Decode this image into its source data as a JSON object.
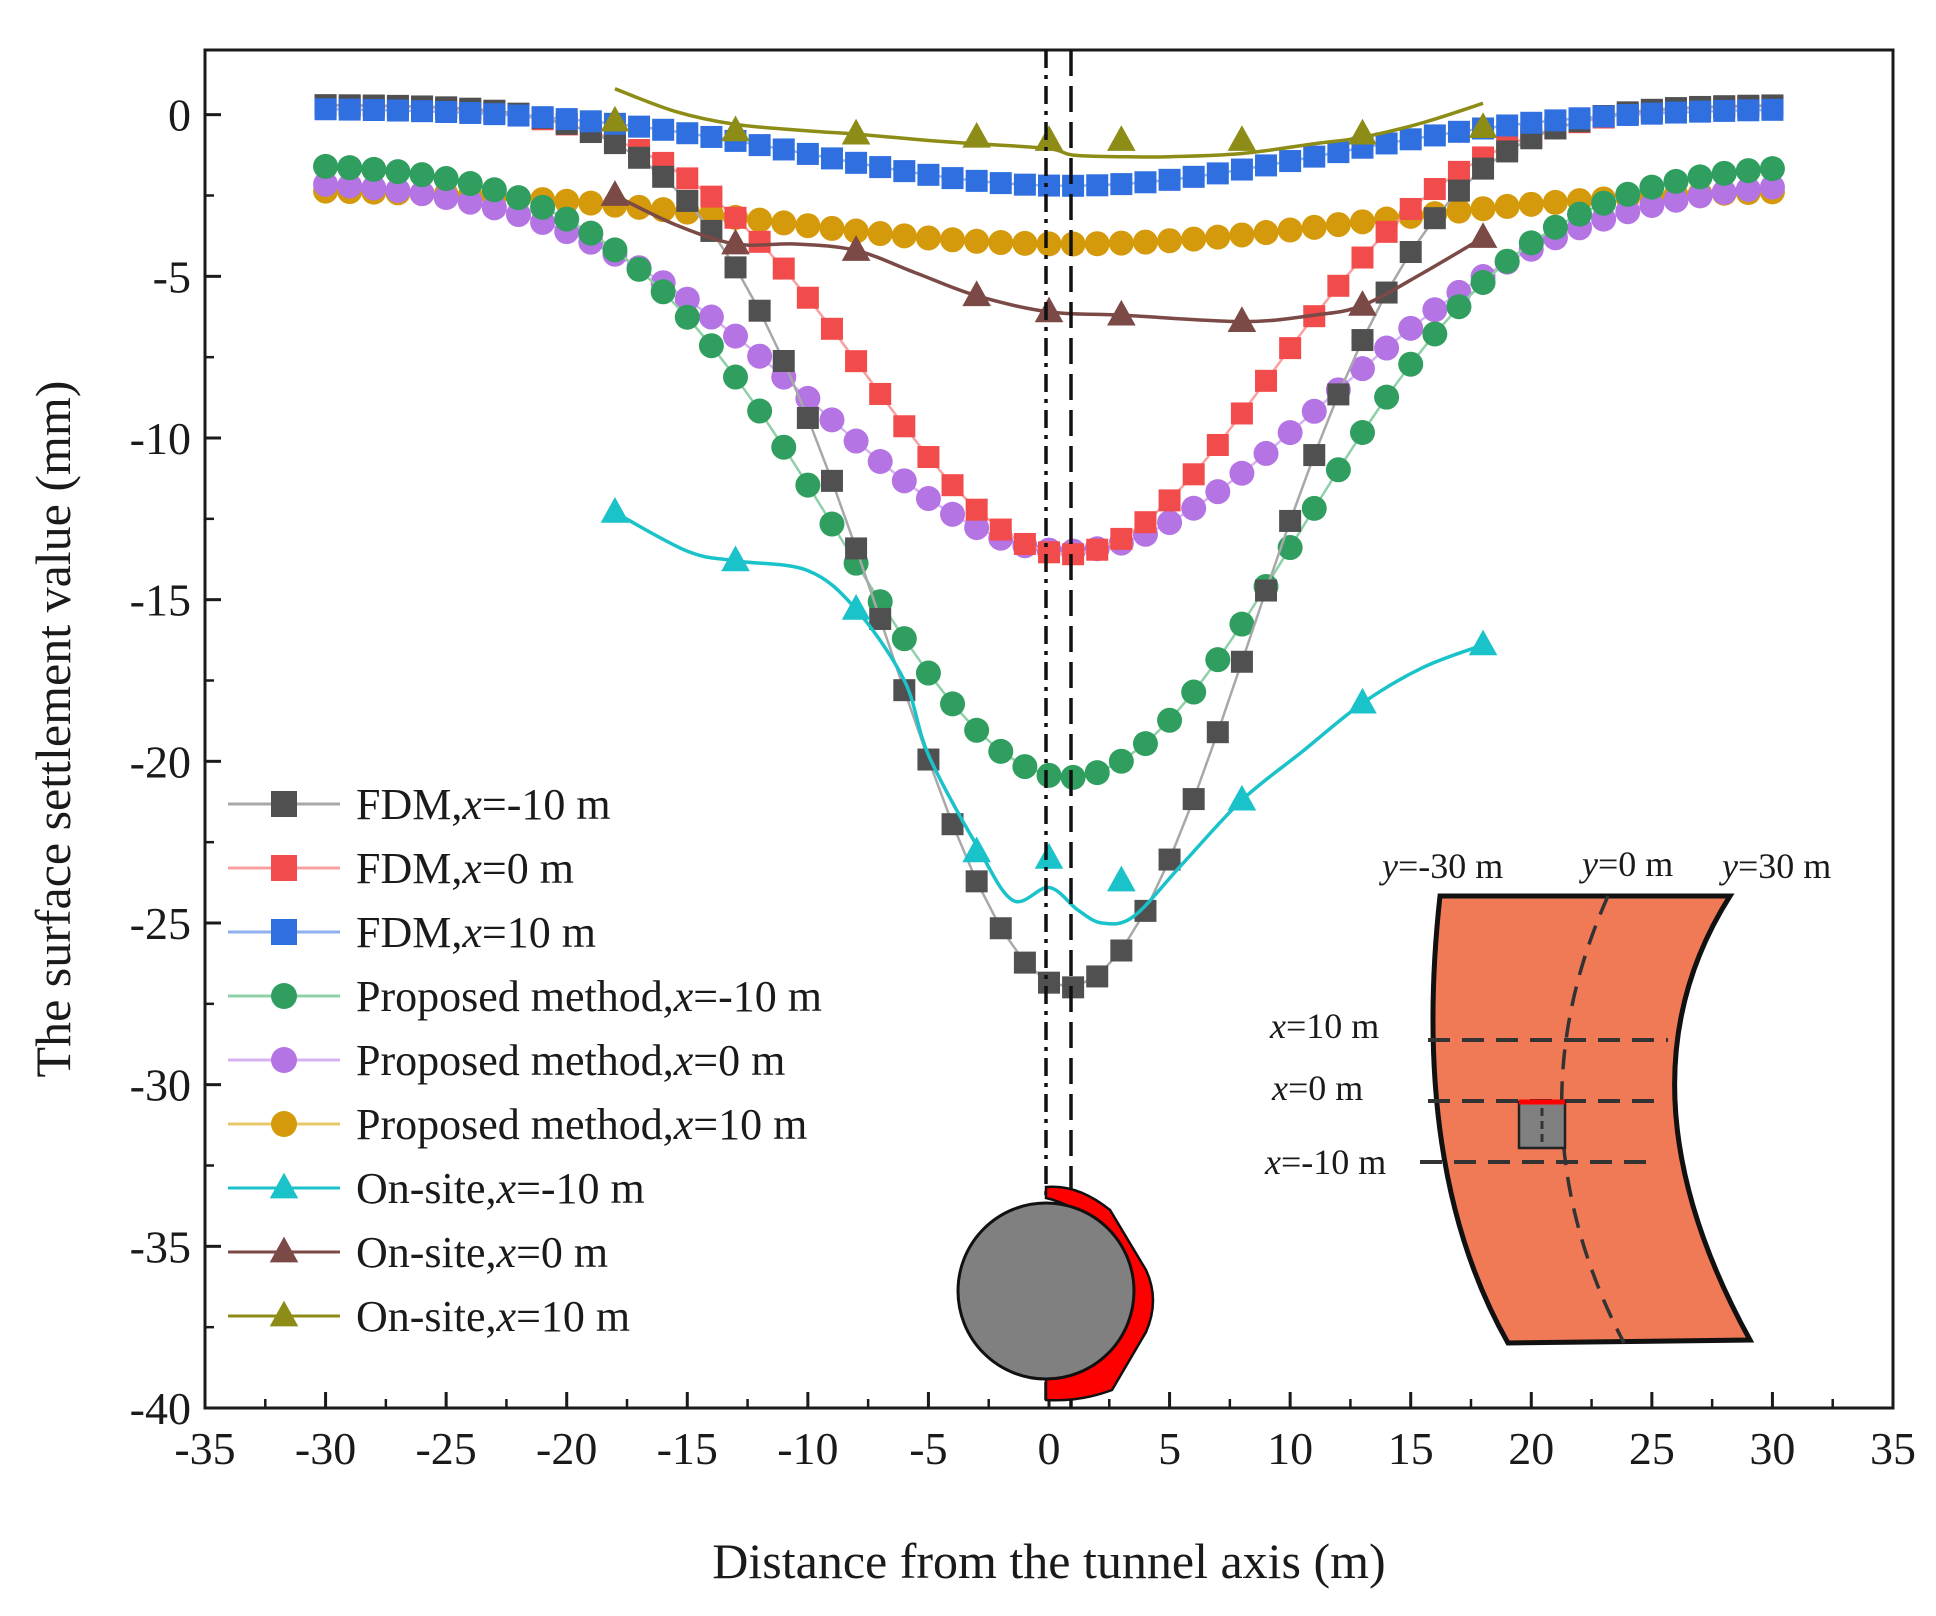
{
  "chart_data": {
    "type": "scatter",
    "title": "",
    "xlabel": "Distance from the tunnel axis (m)",
    "ylabel": "The surface settlement value (mm)",
    "xlim": [
      -35,
      35
    ],
    "ylim": [
      -40,
      2
    ],
    "xticks": [
      -35,
      -30,
      -25,
      -20,
      -15,
      -10,
      -5,
      0,
      5,
      10,
      15,
      20,
      25,
      30,
      35
    ],
    "yticks": [
      0,
      -5,
      -10,
      -15,
      -20,
      -25,
      -30,
      -35,
      -40
    ],
    "grid": false,
    "legend_position": "lower-left",
    "series": [
      {
        "name": "FDM,x=-10 m",
        "legend_parts": [
          "FDM,",
          "x",
          "=-10 m"
        ],
        "marker": "square",
        "color": "#505050",
        "line_color": "#a8a8a8",
        "curve": "gauss",
        "A": -27.0,
        "sigma": 7.5,
        "off": 0.3
      },
      {
        "name": "FDM,x=0 m",
        "legend_parts": [
          "FDM,",
          "x",
          "=0 m"
        ],
        "marker": "square",
        "color": "#f24b4b",
        "line_color": "#f8a0a0",
        "curve": "gauss",
        "A": -13.6,
        "sigma": 8.3,
        "off": 0.3
      },
      {
        "name": "FDM,x=10 m",
        "legend_parts": [
          "FDM,",
          "x",
          "=10 m"
        ],
        "marker": "square",
        "color": "#2f6fe0",
        "line_color": "#8fb2ee",
        "curve": "gauss",
        "A": -2.2,
        "sigma": 10.5,
        "off": 0.2
      },
      {
        "name": "Proposed method,x=-10 m",
        "legend_parts": [
          "Proposed method,",
          "x",
          "=-10 m"
        ],
        "marker": "circle",
        "color": "#2f9e5f",
        "line_color": "#8fd0a8",
        "curve": "gauss",
        "A": -20.5,
        "sigma": 9.5,
        "off": -1.5
      },
      {
        "name": "Proposed method,x=0 m",
        "legend_parts": [
          "Proposed method,",
          "x",
          "=0 m"
        ],
        "marker": "circle",
        "color": "#b474e4",
        "line_color": "#d6b2f1",
        "curve": "gauss",
        "A": -13.5,
        "sigma": 10.5,
        "off": -2.0
      },
      {
        "name": "Proposed method,x=10 m",
        "legend_parts": [
          "Proposed method,",
          "x",
          "=10 m"
        ],
        "marker": "circle",
        "color": "#d49a0b",
        "line_color": "#e8c96a",
        "curve": "gauss",
        "A": -4.0,
        "sigma": 12.0,
        "off": -2.3
      },
      {
        "name": "On-site,x=-10 m",
        "legend_parts": [
          "On-site,",
          "x",
          "=-10 m"
        ],
        "marker": "triangle",
        "color": "#19c3c9",
        "line_color": "#19c3c9",
        "curve": "points",
        "x": [
          -18,
          -13,
          -8,
          -3,
          0,
          3,
          8,
          13,
          18
        ],
        "y": [
          -12.3,
          -13.8,
          -15.3,
          -22.8,
          -23.0,
          -23.7,
          -21.2,
          -18.2,
          -16.4
        ],
        "smooth": [
          [
            -18,
            -12.3
          ],
          [
            -15,
            -13.5
          ],
          [
            -13,
            -13.8
          ],
          [
            -10,
            -14.1
          ],
          [
            -8,
            -15.3
          ],
          [
            -6,
            -17.5
          ],
          [
            -5,
            -19.8
          ],
          [
            -3,
            -22.6
          ],
          [
            -1.5,
            -24.3
          ],
          [
            0,
            -23.9
          ],
          [
            1.2,
            -24.6
          ],
          [
            2.2,
            -25.0
          ],
          [
            3.5,
            -24.8
          ],
          [
            5.5,
            -23.2
          ],
          [
            8,
            -21.2
          ],
          [
            10.5,
            -19.7
          ],
          [
            13,
            -18.2
          ],
          [
            15.5,
            -17.1
          ],
          [
            18,
            -16.4
          ]
        ]
      },
      {
        "name": "On-site,x=0 m",
        "legend_parts": [
          "On-site,",
          "x",
          "=0 m"
        ],
        "marker": "triangle",
        "color": "#7b4a46",
        "line_color": "#7b4a46",
        "curve": "points",
        "x": [
          -18,
          -13,
          -8,
          -3,
          0,
          3,
          8,
          13,
          18
        ],
        "y": [
          -2.5,
          -4.0,
          -4.2,
          -5.6,
          -6.1,
          -6.2,
          -6.4,
          -5.9,
          -3.8
        ],
        "smooth": [
          [
            -18,
            -2.5
          ],
          [
            -15.5,
            -3.4
          ],
          [
            -13,
            -4.0
          ],
          [
            -10.5,
            -4.0
          ],
          [
            -8,
            -4.2
          ],
          [
            -5.5,
            -4.9
          ],
          [
            -3,
            -5.6
          ],
          [
            0,
            -6.1
          ],
          [
            3,
            -6.2
          ],
          [
            8,
            -6.4
          ],
          [
            11,
            -6.2
          ],
          [
            13,
            -5.9
          ],
          [
            15.5,
            -4.9
          ],
          [
            18,
            -3.8
          ]
        ]
      },
      {
        "name": "On-site,x=10 m",
        "legend_parts": [
          "On-site,",
          "x",
          "=10 m"
        ],
        "marker": "triangle",
        "color": "#8c8c16",
        "line_color": "#8c8c16",
        "curve": "points",
        "x": [
          -18,
          -13,
          -8,
          -3,
          0,
          3,
          8,
          13,
          18
        ],
        "y": [
          -0.2,
          -0.5,
          -0.6,
          -0.7,
          -0.8,
          -0.8,
          -0.8,
          -0.6,
          -0.4
        ],
        "smooth": [
          [
            -18,
            0.8
          ],
          [
            -15.5,
            0.1
          ],
          [
            -13,
            -0.3
          ],
          [
            -10,
            -0.5
          ],
          [
            -8,
            -0.6
          ],
          [
            -5,
            -0.8
          ],
          [
            -3,
            -0.9
          ],
          [
            0,
            -1.05
          ],
          [
            1,
            -1.25
          ],
          [
            3,
            -1.3
          ],
          [
            5,
            -1.3
          ],
          [
            8,
            -1.2
          ],
          [
            11,
            -0.9
          ],
          [
            13,
            -0.7
          ],
          [
            15.5,
            -0.25
          ],
          [
            18,
            0.35
          ]
        ]
      }
    ]
  },
  "inset": {
    "labels": {
      "y_left": [
        "y",
        "=-30 m"
      ],
      "y_mid": [
        "y",
        "=0 m"
      ],
      "y_right": [
        "y",
        "=30 m"
      ],
      "x_top": [
        "x",
        "=10 m"
      ],
      "x_mid": [
        "x",
        "=0 m"
      ],
      "x_bot": [
        "x",
        "=-10 m"
      ]
    },
    "colors": {
      "fill": "#f07a56",
      "tunnel": "#808080",
      "lining": "#ff0000"
    }
  }
}
